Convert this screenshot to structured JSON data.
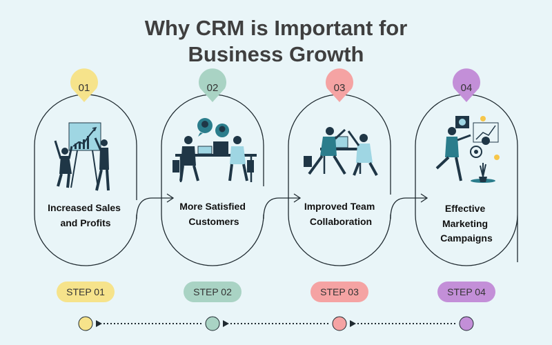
{
  "title_line1": "Why CRM is Important for",
  "title_line2": "Business Growth",
  "steps": [
    {
      "num": "01",
      "label_lines": [
        "Increased Sales",
        "and Profits"
      ],
      "pill": "STEP 01",
      "color": "#f6e38b"
    },
    {
      "num": "02",
      "label_lines": [
        "More Satisfied",
        "Customers"
      ],
      "pill": "STEP 02",
      "color": "#a9d3c4"
    },
    {
      "num": "03",
      "label_lines": [
        "Improved Team",
        "Collaboration"
      ],
      "pill": "STEP 03",
      "color": "#f5a3a3"
    },
    {
      "num": "04",
      "label_lines": [
        "Effective",
        "Marketing",
        "Campaigns"
      ],
      "pill": "STEP 04",
      "color": "#c38fd8"
    }
  ],
  "colors": {
    "background": "#e9f5f8",
    "outline": "#1f2a30",
    "navy": "#1f3646",
    "teal": "#2b7d8c"
  }
}
